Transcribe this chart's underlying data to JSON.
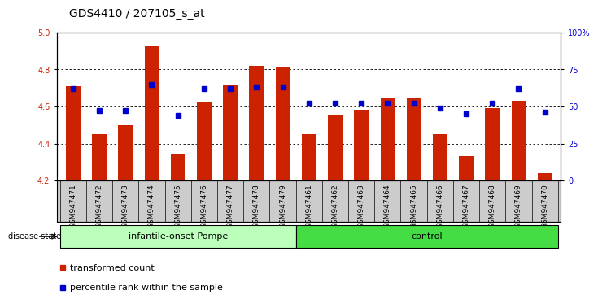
{
  "title": "GDS4410 / 207105_s_at",
  "samples": [
    "GSM947471",
    "GSM947472",
    "GSM947473",
    "GSM947474",
    "GSM947475",
    "GSM947476",
    "GSM947477",
    "GSM947478",
    "GSM947479",
    "GSM947461",
    "GSM947462",
    "GSM947463",
    "GSM947464",
    "GSM947465",
    "GSM947466",
    "GSM947467",
    "GSM947468",
    "GSM947469",
    "GSM947470"
  ],
  "bar_values": [
    4.71,
    4.45,
    4.5,
    4.93,
    4.34,
    4.62,
    4.72,
    4.82,
    4.81,
    4.45,
    4.55,
    4.58,
    4.65,
    4.65,
    4.45,
    4.33,
    4.59,
    4.63,
    4.24
  ],
  "percentile_values": [
    62,
    47,
    47,
    65,
    44,
    62,
    62,
    63,
    63,
    52,
    52,
    52,
    52,
    52,
    49,
    45,
    52,
    62,
    46
  ],
  "bar_color": "#cc2200",
  "percentile_color": "#0000cc",
  "ylim_left": [
    4.2,
    5.0
  ],
  "ylim_right": [
    0,
    100
  ],
  "yticks_left": [
    4.2,
    4.4,
    4.6,
    4.8,
    5.0
  ],
  "yticks_right": [
    0,
    25,
    50,
    75,
    100
  ],
  "ytick_labels_right": [
    "0",
    "25",
    "50",
    "75",
    "100%"
  ],
  "group1_label": "infantile-onset Pompe",
  "group2_label": "control",
  "group1_indices": [
    0,
    1,
    2,
    3,
    4,
    5,
    6,
    7,
    8
  ],
  "group2_indices": [
    9,
    10,
    11,
    12,
    13,
    14,
    15,
    16,
    17,
    18
  ],
  "disease_state_label": "disease state",
  "legend_bar_label": "transformed count",
  "legend_pct_label": "percentile rank within the sample",
  "group1_color": "#bbffbb",
  "group2_color": "#44dd44",
  "xtick_bg_color": "#cccccc",
  "bar_width": 0.55,
  "bg_color": "#ffffff",
  "tick_label_size": 7,
  "title_fontsize": 10,
  "group_fontsize": 8,
  "legend_fontsize": 8
}
